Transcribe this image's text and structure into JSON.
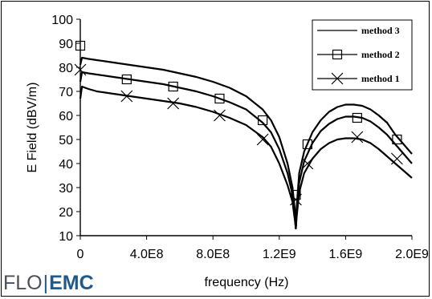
{
  "chart_data": {
    "type": "line",
    "xlabel": "frequency (Hz)",
    "ylabel": "E Field (dBV/m)",
    "xlim": [
      0,
      2000000000
    ],
    "ylim": [
      10,
      100
    ],
    "x_ticks": [
      "0",
      "4.0E8",
      "8.0E8",
      "1.2E9",
      "1.6E9",
      "2.0E9"
    ],
    "y_ticks": [
      "10",
      "20",
      "30",
      "40",
      "50",
      "60",
      "70",
      "80",
      "90",
      "100"
    ],
    "grid": false,
    "legend_position": "top-right",
    "series": [
      {
        "name": "method 3",
        "marker": "none",
        "x": [
          0,
          10000000,
          50000000,
          100000000,
          200000000,
          300000000,
          400000000,
          500000000,
          600000000,
          700000000,
          800000000,
          900000000,
          1000000000,
          1100000000,
          1150000000,
          1200000000,
          1250000000,
          1280000000,
          1295000000,
          1300000000,
          1305000000,
          1320000000,
          1350000000,
          1400000000,
          1450000000,
          1500000000,
          1550000000,
          1600000000,
          1650000000,
          1700000000,
          1750000000,
          1800000000,
          1850000000,
          1900000000,
          1950000000,
          2000000000
        ],
        "y": [
          81,
          84,
          83.5,
          83,
          82,
          81,
          80,
          79,
          77.5,
          76,
          74,
          71.5,
          68,
          62.5,
          58,
          51,
          40,
          30,
          20,
          13,
          22,
          36,
          45,
          53,
          58,
          61.5,
          63.5,
          64.5,
          64.5,
          64,
          62.5,
          60,
          57,
          52,
          48,
          44
        ]
      },
      {
        "name": "method 2",
        "marker": "square",
        "x": [
          0,
          10000000,
          50000000,
          100000000,
          200000000,
          300000000,
          400000000,
          500000000,
          600000000,
          700000000,
          800000000,
          900000000,
          1000000000,
          1100000000,
          1150000000,
          1200000000,
          1250000000,
          1280000000,
          1295000000,
          1300000000,
          1305000000,
          1320000000,
          1350000000,
          1400000000,
          1450000000,
          1500000000,
          1550000000,
          1600000000,
          1650000000,
          1700000000,
          1750000000,
          1800000000,
          1850000000,
          1900000000,
          1950000000,
          2000000000
        ],
        "y": [
          74,
          78,
          77.5,
          77,
          76,
          75,
          74,
          73,
          71.5,
          70,
          68,
          65.5,
          62.5,
          57,
          53,
          46,
          36,
          27,
          18,
          13,
          20,
          32,
          41,
          48.5,
          53.5,
          56.5,
          58.5,
          59.5,
          59.5,
          59,
          57.5,
          55,
          52,
          48,
          44,
          40
        ],
        "marker_x": [
          0,
          280000000,
          560000000,
          840000000,
          1100000000,
          1300000000,
          1370000000,
          1670000000,
          1910000000
        ],
        "marker_y": [
          89,
          75,
          72,
          67,
          58,
          27,
          48,
          59,
          50
        ]
      },
      {
        "name": "method 1",
        "marker": "x",
        "x": [
          0,
          10000000,
          50000000,
          100000000,
          200000000,
          300000000,
          400000000,
          500000000,
          600000000,
          700000000,
          800000000,
          900000000,
          1000000000,
          1100000000,
          1150000000,
          1200000000,
          1250000000,
          1280000000,
          1295000000,
          1300000000,
          1305000000,
          1320000000,
          1350000000,
          1400000000,
          1450000000,
          1500000000,
          1550000000,
          1600000000,
          1650000000,
          1700000000,
          1750000000,
          1800000000,
          1850000000,
          1900000000,
          1950000000,
          2000000000
        ],
        "y": [
          67,
          72,
          71,
          70,
          69,
          68,
          67,
          66,
          65,
          63.5,
          61.5,
          59,
          56,
          51,
          47,
          40,
          31,
          24,
          16,
          13,
          18,
          28,
          36,
          42,
          46,
          48.5,
          50,
          50.5,
          50.5,
          50,
          48.5,
          46,
          43,
          40,
          37,
          34
        ],
        "marker_x": [
          0,
          280000000,
          560000000,
          840000000,
          1100000000,
          1300000000,
          1370000000,
          1670000000,
          1910000000
        ],
        "marker_y": [
          79,
          68,
          65,
          60,
          50,
          25,
          40,
          51,
          42
        ]
      }
    ]
  },
  "branding": {
    "logo_left": "FLO",
    "logo_separator": "|",
    "logo_right": "EMC"
  }
}
